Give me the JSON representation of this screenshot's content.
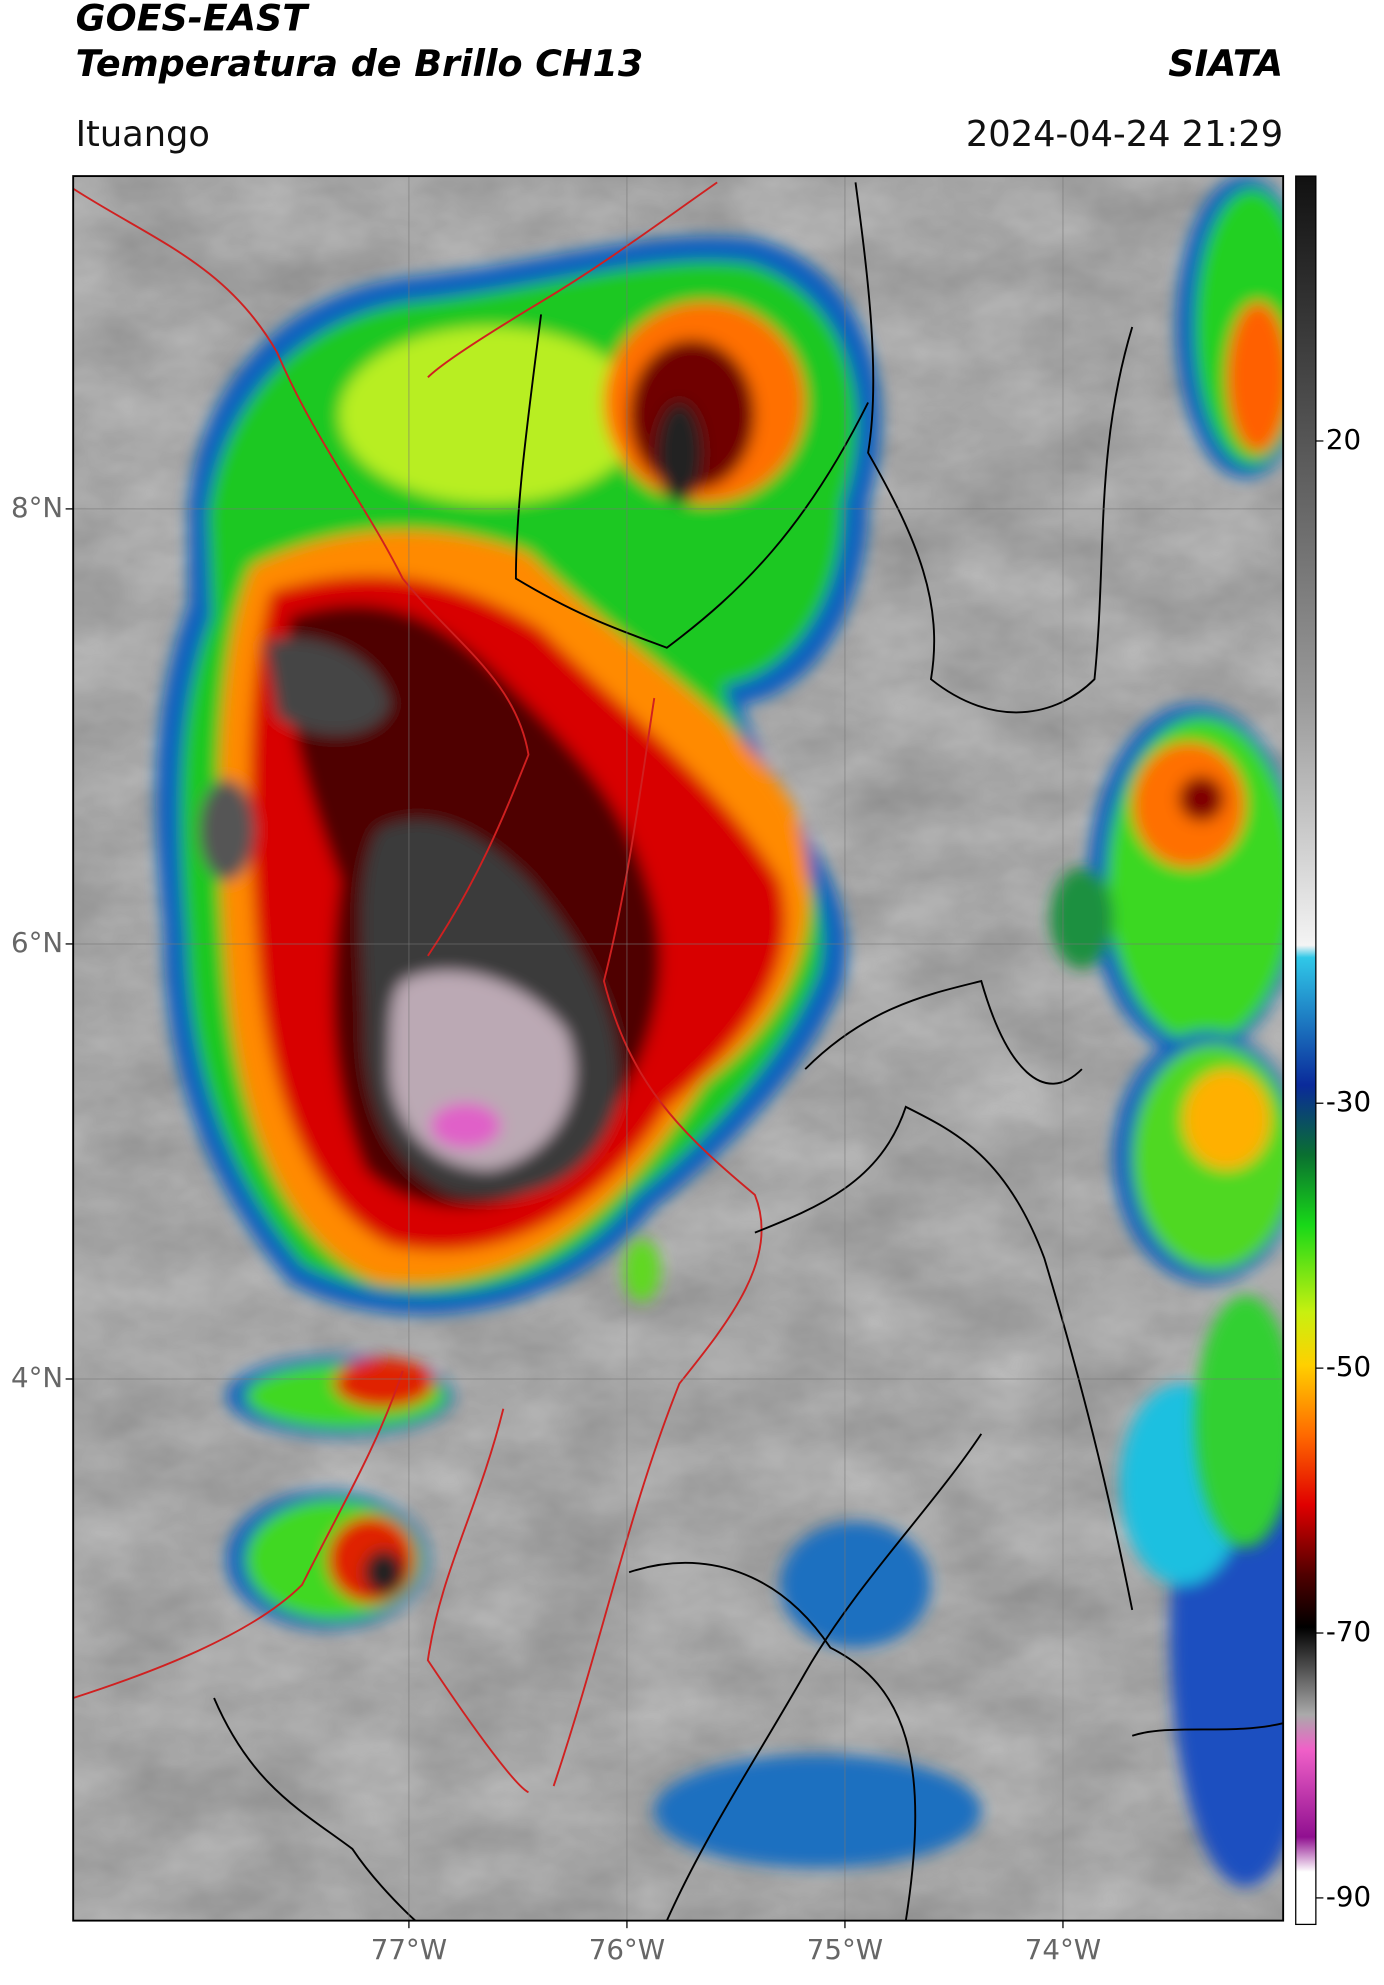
{
  "header": {
    "title_line1": "GOES-EAST",
    "title_line2": "Temperatura de Brillo CH13",
    "organization": "SIATA",
    "location": "Ituango",
    "timestamp": "2024-04-24 21:29"
  },
  "map": {
    "lat_range": [
      1.51,
      9.53
    ],
    "lon_range": [
      -78.54,
      -72.99
    ],
    "lat_ticks": [
      {
        "value": 8,
        "label": "8°N"
      },
      {
        "value": 6,
        "label": "6°N"
      },
      {
        "value": 4,
        "label": "4°N"
      }
    ],
    "lon_ticks": [
      {
        "value": -77,
        "label": "77°W"
      },
      {
        "value": -76,
        "label": "76°W"
      },
      {
        "value": -75,
        "label": "75°W"
      },
      {
        "value": -74,
        "label": "74°W"
      }
    ]
  },
  "colorbar": {
    "range": [
      -92,
      40
    ],
    "ticks": [
      20,
      -30,
      -50,
      -70,
      -90
    ]
  }
}
